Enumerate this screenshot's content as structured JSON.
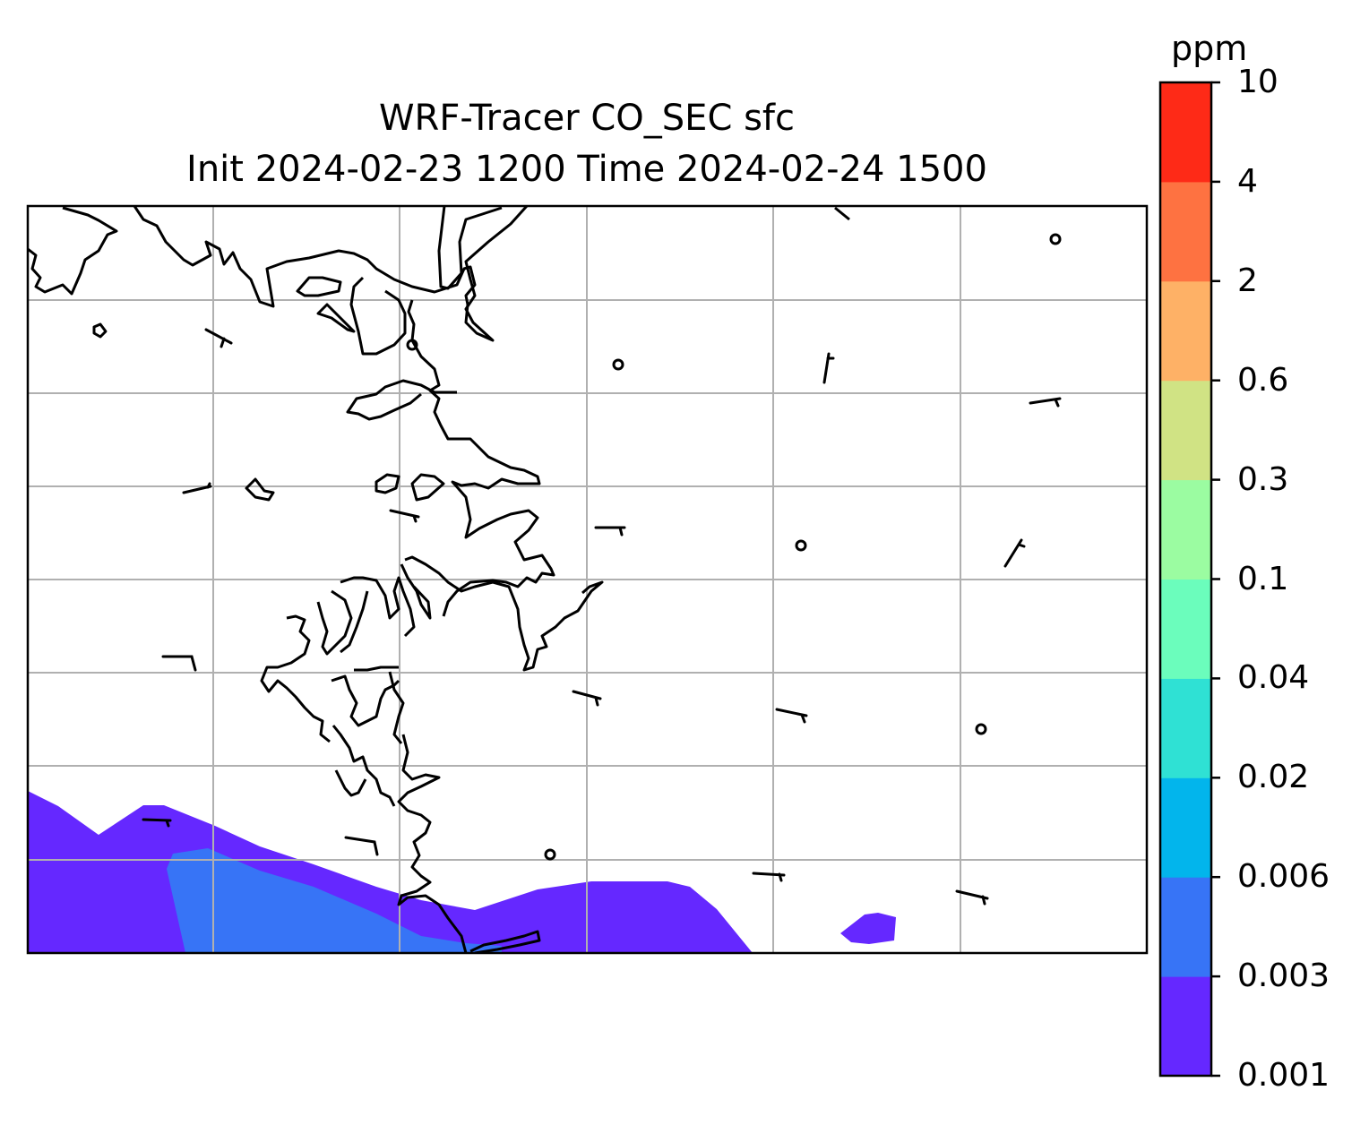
{
  "title": "WRF-Tracer CO_SEC sfc",
  "subtitle": "Init 2024-02-23 1200 Time 2024-02-24 1500",
  "colorbar": {
    "unit": "ppm",
    "levels": [
      "0.001",
      "0.003",
      "0.006",
      "0.02",
      "0.04",
      "0.1",
      "0.3",
      "0.6",
      "2",
      "4",
      "10"
    ],
    "colors": [
      "#6528ff",
      "#3774f6",
      "#02b5ec",
      "#2fe1d4",
      "#6bfdbc",
      "#9bfca1",
      "#d0e384",
      "#feb166",
      "#fe7241",
      "#fe2a17"
    ]
  },
  "map": {
    "gridlines": true,
    "coastline_color": "#000000",
    "gridline_color": "#b0b0b0",
    "wind_barbs": true,
    "concentration_shading": [
      {
        "level": "0.001",
        "color": "#6528ff"
      },
      {
        "level": "0.003",
        "color": "#3774f6"
      }
    ]
  }
}
